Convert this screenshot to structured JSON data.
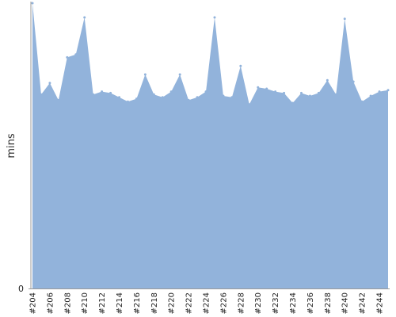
{
  "chart_data": {
    "type": "area",
    "ylabel": "mins",
    "xlabel": "",
    "title": "",
    "ylim": [
      0,
      100
    ],
    "y_tick_labels": [
      "0"
    ],
    "grid": false,
    "legend": "none",
    "fill_color": "#92b3db",
    "x": [
      "#204",
      "#205",
      "#206",
      "#207",
      "#208",
      "#209",
      "#210",
      "#211",
      "#212",
      "#213",
      "#214",
      "#215",
      "#216",
      "#217",
      "#218",
      "#219",
      "#220",
      "#221",
      "#222",
      "#223",
      "#224",
      "#225",
      "#226",
      "#227",
      "#228",
      "#229",
      "#230",
      "#231",
      "#232",
      "#233",
      "#234",
      "#235",
      "#236",
      "#237",
      "#238",
      "#239",
      "#240",
      "#241",
      "#242",
      "#243",
      "#244",
      "#245"
    ],
    "x_tick_labels": [
      "#204",
      "#206",
      "#208",
      "#210",
      "#212",
      "#214",
      "#216",
      "#218",
      "#220",
      "#222",
      "#224",
      "#226",
      "#228",
      "#230",
      "#232",
      "#234",
      "#236",
      "#238",
      "#240",
      "#242",
      "#244"
    ],
    "values": [
      100,
      68,
      72,
      66,
      81,
      82,
      95,
      68,
      69,
      68.5,
      67,
      65.5,
      66.5,
      75,
      68,
      67,
      69,
      75,
      66,
      67,
      69,
      95,
      67.5,
      67,
      78,
      64.5,
      70.5,
      70,
      69,
      68.5,
      65,
      68.5,
      67.5,
      68.5,
      73,
      68,
      94.5,
      72.5,
      65.5,
      67.5,
      69,
      69.5
    ]
  }
}
